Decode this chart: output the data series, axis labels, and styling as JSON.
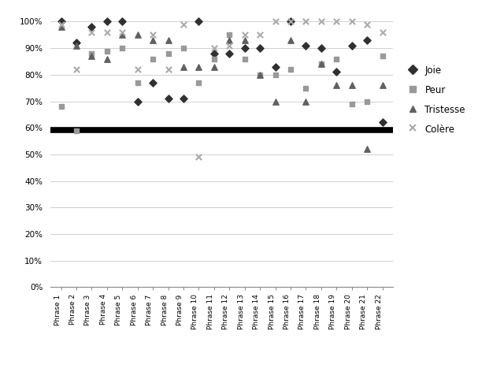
{
  "phrases": [
    "Phrase 1",
    "Phrase 2",
    "Phrase 3",
    "Phrase 4",
    "Phrase 5",
    "Phrase 6",
    "Phrase 7",
    "Phrase 8",
    "Phrase 9",
    "Phrase 10",
    "Phrase 11",
    "Phrase 12",
    "Phrase 13",
    "Phrase 14",
    "Phrase 15",
    "Phrase 16",
    "Phrase 17",
    "Phrase 18",
    "Phrase 19",
    "Phrase 20",
    "Phrase 21",
    "Phrase 22"
  ],
  "joie": [
    1.0,
    0.92,
    0.98,
    1.0,
    1.0,
    0.7,
    0.77,
    0.71,
    0.71,
    1.0,
    0.88,
    0.88,
    0.9,
    0.9,
    0.83,
    1.0,
    0.91,
    0.9,
    0.81,
    0.91,
    0.93,
    0.62
  ],
  "peur": [
    0.68,
    0.59,
    0.88,
    0.89,
    0.9,
    0.77,
    0.86,
    0.88,
    0.9,
    0.77,
    0.86,
    0.95,
    0.86,
    0.8,
    0.8,
    0.82,
    0.75,
    0.84,
    0.86,
    0.69,
    0.7,
    0.87
  ],
  "tristesse": [
    0.98,
    0.91,
    0.87,
    0.86,
    0.95,
    0.95,
    0.93,
    0.93,
    0.83,
    0.83,
    0.83,
    0.93,
    0.93,
    0.8,
    0.7,
    0.93,
    0.7,
    0.84,
    0.76,
    0.76,
    0.52,
    0.76
  ],
  "colere": [
    0.99,
    0.82,
    0.96,
    0.96,
    0.96,
    0.82,
    0.95,
    0.82,
    0.99,
    0.49,
    0.9,
    0.91,
    0.95,
    0.95,
    1.0,
    1.0,
    1.0,
    1.0,
    1.0,
    1.0,
    0.99,
    0.96
  ],
  "threshold": 0.5909,
  "joie_color": "#303030",
  "peur_color": "#999999",
  "tristesse_color": "#606060",
  "colere_color": "#aaaaaa",
  "threshold_color": "#000000",
  "background_color": "#ffffff",
  "ylim": [
    0.0,
    1.04
  ],
  "yticks": [
    0.0,
    0.1,
    0.2,
    0.3,
    0.4,
    0.5,
    0.6,
    0.7,
    0.8,
    0.9,
    1.0
  ],
  "ytick_labels": [
    "0%",
    "10%",
    "20%",
    "30%",
    "40%",
    "50%",
    "60%",
    "70%",
    "80%",
    "90%",
    "100%"
  ]
}
